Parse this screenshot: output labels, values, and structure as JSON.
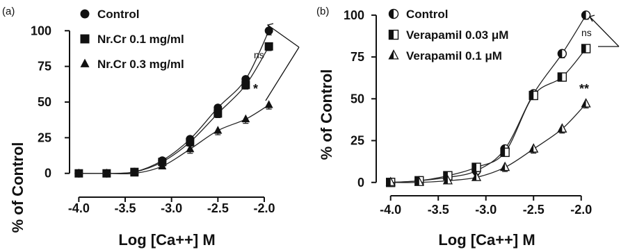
{
  "chart_data": [
    {
      "panel": "(a)",
      "type": "line",
      "xlabel": "Log [Ca++] M",
      "ylabel": "% of Control",
      "xlim": [
        -4.1,
        -1.85
      ],
      "ylim": [
        -5,
        105
      ],
      "xticks": [
        -4.0,
        -3.5,
        -3.0,
        -2.5,
        -2.0
      ],
      "xtick_labels": [
        "-4.0",
        "-3.5",
        "-3.0",
        "-2.5",
        "-2.0"
      ],
      "yticks": [
        0,
        25,
        50,
        75,
        100
      ],
      "ytick_labels": [
        "0",
        "25",
        "50",
        "75",
        "100"
      ],
      "legend_position": "top-left",
      "series": [
        {
          "name": "Control",
          "marker": "circle",
          "x": [
            -4.0,
            -3.7,
            -3.4,
            -3.1,
            -2.8,
            -2.5,
            -2.2,
            -1.95
          ],
          "y": [
            0,
            0,
            1,
            9,
            24,
            46,
            66,
            100
          ]
        },
        {
          "name": "Nr.Cr 0.1 mg/ml",
          "marker": "square",
          "x": [
            -4.0,
            -3.7,
            -3.4,
            -3.1,
            -2.8,
            -2.5,
            -2.2,
            -1.95
          ],
          "y": [
            0,
            0,
            1,
            8,
            22,
            42,
            62,
            89
          ]
        },
        {
          "name": "Nr.Cr 0.3 mg/ml",
          "marker": "triangle",
          "x": [
            -4.0,
            -3.7,
            -3.4,
            -3.1,
            -2.8,
            -2.5,
            -2.2,
            -1.95
          ],
          "y": [
            0,
            0,
            0,
            5,
            17,
            30,
            38,
            48
          ]
        }
      ],
      "annotations": [
        "ns",
        "*"
      ]
    },
    {
      "panel": "(b)",
      "type": "line",
      "xlabel": "Log [Ca++] M",
      "ylabel": "% of Control",
      "xlim": [
        -4.1,
        -1.75
      ],
      "ylim": [
        -3,
        102
      ],
      "xticks": [
        -4.0,
        -3.5,
        -3.0,
        -2.5,
        -2.0
      ],
      "xtick_labels": [
        "-4.0",
        "-3.5",
        "-3.0",
        "-2.5",
        "-2.0"
      ],
      "yticks": [
        0,
        25,
        50,
        75,
        100
      ],
      "ytick_labels": [
        "0",
        "25",
        "50",
        "75",
        "100"
      ],
      "legend_position": "top-left",
      "series": [
        {
          "name": "Control",
          "marker": "half-circle",
          "x": [
            -4.0,
            -3.7,
            -3.4,
            -3.1,
            -2.8,
            -2.5,
            -2.2,
            -1.95
          ],
          "y": [
            0,
            1,
            3,
            7,
            20,
            53,
            77,
            100
          ]
        },
        {
          "name": "Verapamil 0.03 μM",
          "marker": "half-square",
          "x": [
            -4.0,
            -3.7,
            -3.4,
            -3.1,
            -2.8,
            -2.5,
            -2.2,
            -1.95
          ],
          "y": [
            0,
            1,
            4,
            9,
            18,
            52,
            63,
            80
          ]
        },
        {
          "name": "Verapamil 0.1 μM",
          "marker": "half-triangle",
          "x": [
            -4.0,
            -3.7,
            -3.4,
            -3.1,
            -2.8,
            -2.5,
            -2.2,
            -1.95
          ],
          "y": [
            0,
            0,
            1,
            3,
            9,
            20,
            32,
            47
          ]
        }
      ],
      "annotations": [
        "ns",
        "**"
      ]
    }
  ]
}
